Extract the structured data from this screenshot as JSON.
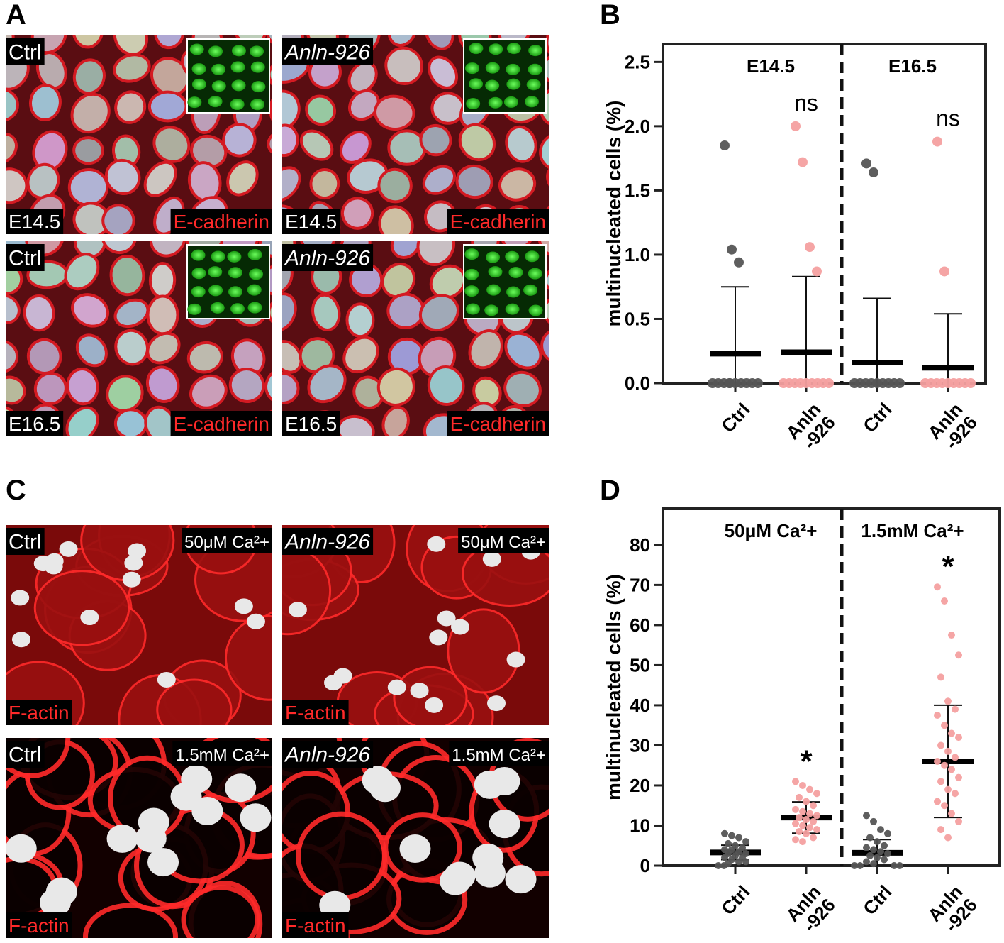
{
  "panel_a": {
    "label": "A",
    "images": [
      {
        "genotype": "Ctrl",
        "stage": "E14.5",
        "stain": "E-cadherin"
      },
      {
        "genotype": "Anln-926",
        "stage": "E14.5",
        "stain": "E-cadherin"
      },
      {
        "genotype": "Ctrl",
        "stage": "E16.5",
        "stain": "E-cadherin"
      },
      {
        "genotype": "Anln-926",
        "stage": "E16.5",
        "stain": "E-cadherin"
      }
    ]
  },
  "panel_c": {
    "label": "C",
    "images": [
      {
        "genotype": "Ctrl",
        "condition": "50μM Ca²+",
        "stain": "F-actin"
      },
      {
        "genotype": "Anln-926",
        "condition": "50μM Ca²+",
        "stain": "F-actin"
      },
      {
        "genotype": "Ctrl",
        "condition": "1.5mM Ca²+",
        "stain": "F-actin"
      },
      {
        "genotype": "Anln-926",
        "condition": "1.5mM Ca²+",
        "stain": "F-actin"
      }
    ]
  },
  "chart_data": [
    {
      "type": "dot",
      "panel": "B",
      "ylabel": "multinucleated cells (%)",
      "categories": [
        "Ctrl",
        "Anln\n-926",
        "Ctrl",
        "Anln\n-926"
      ],
      "group_labels": [
        "E14.5",
        "E16.5"
      ],
      "colors": [
        "#555555",
        "#f4a0a0",
        "#555555",
        "#f4a0a0"
      ],
      "values": [
        [
          1.85,
          1.04,
          0.94,
          0,
          0,
          0,
          0,
          0,
          0,
          0,
          0,
          0,
          0
        ],
        [
          2.0,
          1.72,
          1.06,
          0.87,
          0,
          0,
          0,
          0,
          0,
          0,
          0,
          0,
          0
        ],
        [
          1.71,
          1.64,
          0,
          0,
          0,
          0,
          0,
          0,
          0,
          0,
          0
        ],
        [
          1.88,
          0.87,
          0,
          0,
          0,
          0,
          0,
          0,
          0,
          0,
          0
        ]
      ],
      "means": [
        0.23,
        0.24,
        0.16,
        0.12
      ],
      "errors": [
        0.52,
        0.59,
        0.5,
        0.42
      ],
      "annotations": [
        {
          "text": "ns",
          "category": 1
        },
        {
          "text": "ns",
          "category": 3
        }
      ],
      "ylim": [
        0,
        2.64
      ],
      "yticks": [
        {
          "value": 0,
          "label": "0.0"
        },
        0.5,
        {
          "value": 1,
          "label": "1.0"
        },
        1.5,
        {
          "value": 2,
          "label": "2.0"
        },
        2.5
      ]
    },
    {
      "type": "dot",
      "panel": "D",
      "ylabel": "multinucleated cells (%)",
      "categories": [
        "Ctrl",
        "Anln\n-926",
        "Ctrl",
        "Anln\n-926"
      ],
      "group_labels": [
        "50μM Ca²+",
        "1.5mM Ca²+"
      ],
      "colors": [
        "#555555",
        "#f4a0a0",
        "#555555",
        "#f4a0a0"
      ],
      "values": [
        [
          8,
          7.5,
          7,
          6,
          5.5,
          5,
          4.5,
          4,
          4,
          3.5,
          3,
          3,
          2.5,
          2,
          2,
          1.5,
          1,
          1,
          0.5,
          0,
          0
        ],
        [
          21,
          20,
          19,
          18,
          17,
          16,
          15,
          14,
          13.5,
          13,
          12.5,
          12,
          11.5,
          11,
          10.5,
          10,
          9.5,
          9,
          8.5,
          8,
          7,
          6.5,
          6
        ],
        [
          12.5,
          11,
          9,
          8,
          7,
          6,
          5,
          4.5,
          4,
          3.5,
          3,
          2.5,
          2,
          1.5,
          1,
          0.5,
          0,
          0,
          0,
          0
        ],
        [
          69.5,
          66,
          57.5,
          52.5,
          47,
          41,
          39,
          37.5,
          35,
          33,
          32,
          30,
          28.5,
          27,
          26,
          25,
          24,
          22,
          21,
          19,
          18,
          16,
          15,
          13,
          11,
          9,
          7
        ]
      ],
      "means": [
        3.3,
        12,
        3.2,
        26
      ],
      "errors": [
        1.8,
        3.9,
        3.3,
        14
      ],
      "annotations": [
        {
          "text": "*",
          "category": 1
        },
        {
          "text": "*",
          "category": 3
        }
      ],
      "ylim": [
        0,
        89
      ],
      "yticks": [
        0,
        10,
        20,
        30,
        40,
        50,
        60,
        70,
        80
      ]
    }
  ]
}
